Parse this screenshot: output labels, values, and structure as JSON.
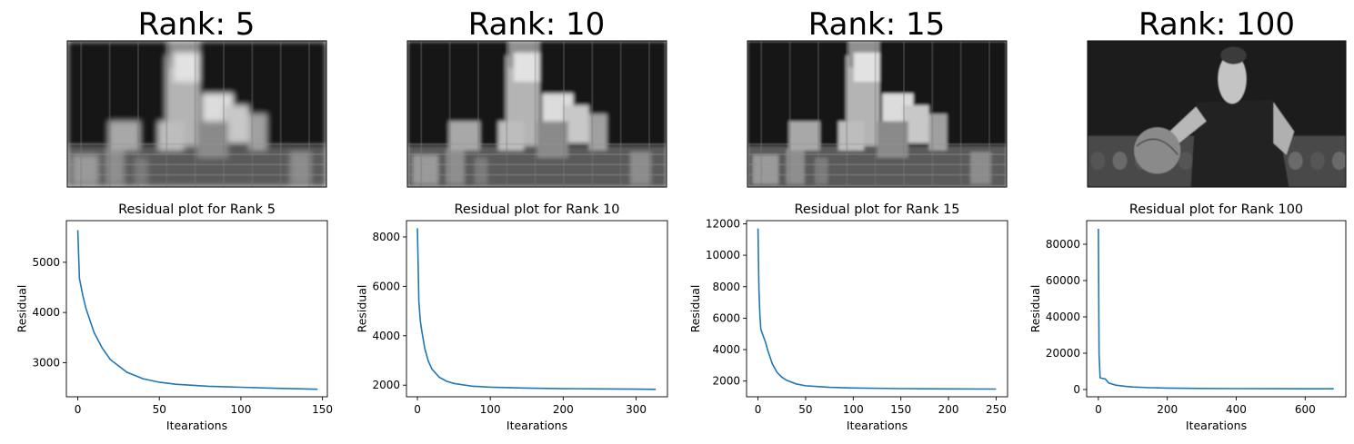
{
  "panels": [
    {
      "image_title": "Rank: 5",
      "plot_title": "Residual plot for Rank 5",
      "rank": 5,
      "image_kind": "low-rank-grayscale-reconstruction"
    },
    {
      "image_title": "Rank: 10",
      "plot_title": "Residual plot for Rank 10",
      "rank": 10,
      "image_kind": "low-rank-grayscale-reconstruction"
    },
    {
      "image_title": "Rank: 15",
      "plot_title": "Residual plot for Rank 15",
      "rank": 15,
      "image_kind": "low-rank-grayscale-reconstruction"
    },
    {
      "image_title": "Rank: 100",
      "plot_title": "Residual plot for Rank 100",
      "rank": 100,
      "image_kind": "grayscale-photo-basketball-player"
    }
  ],
  "colors": {
    "line": "#1f77b4",
    "axes": "#000000",
    "background": "#ffffff"
  },
  "chart_data": [
    {
      "type": "line",
      "title": "Residual plot for Rank 5",
      "xlabel": "Itearations",
      "ylabel": "Residual",
      "xlim": [
        -7,
        153
      ],
      "ylim": [
        2320,
        5830
      ],
      "xticks": [
        0,
        50,
        100,
        150
      ],
      "yticks": [
        3000,
        4000,
        5000
      ],
      "grid": false,
      "series": [
        {
          "x": [
            0,
            1,
            3,
            5,
            10,
            15,
            20,
            30,
            40,
            50,
            60,
            80,
            100,
            120,
            147
          ],
          "y": [
            5640,
            4680,
            4350,
            4080,
            3600,
            3290,
            3060,
            2810,
            2680,
            2610,
            2570,
            2530,
            2510,
            2490,
            2470
          ]
        }
      ]
    },
    {
      "type": "line",
      "title": "Residual plot for Rank 10",
      "xlabel": "Itearations",
      "ylabel": "Residual",
      "xlim": [
        -15,
        343
      ],
      "ylim": [
        1530,
        8660
      ],
      "xticks": [
        0,
        100,
        200,
        300
      ],
      "yticks": [
        2000,
        4000,
        6000,
        8000
      ],
      "grid": false,
      "series": [
        {
          "x": [
            0,
            2,
            4,
            6,
            10,
            15,
            20,
            30,
            40,
            50,
            75,
            100,
            150,
            200,
            250,
            300,
            327
          ],
          "y": [
            8350,
            5400,
            4600,
            4200,
            3500,
            2970,
            2650,
            2320,
            2160,
            2070,
            1960,
            1920,
            1880,
            1860,
            1850,
            1840,
            1830
          ]
        }
      ]
    },
    {
      "type": "line",
      "title": "Residual plot for Rank 15",
      "xlabel": "Itearations",
      "ylabel": "Residual",
      "xlim": [
        -12,
        262
      ],
      "ylim": [
        1000,
        12200
      ],
      "xticks": [
        0,
        50,
        100,
        150,
        200,
        250
      ],
      "yticks": [
        2000,
        4000,
        6000,
        8000,
        10000,
        12000
      ],
      "grid": false,
      "series": [
        {
          "x": [
            0,
            1,
            2,
            3,
            5,
            8,
            10,
            15,
            20,
            25,
            30,
            40,
            50,
            75,
            100,
            150,
            200,
            250
          ],
          "y": [
            11700,
            7800,
            6200,
            5300,
            4950,
            4450,
            4000,
            3100,
            2550,
            2250,
            2050,
            1820,
            1700,
            1600,
            1560,
            1520,
            1500,
            1490
          ]
        }
      ]
    },
    {
      "type": "line",
      "title": "Residual plot for Rank 100",
      "xlabel": "Itearations",
      "ylabel": "Residual",
      "xlim": [
        -34,
        718
      ],
      "ylim": [
        -4000,
        93000
      ],
      "xticks": [
        0,
        200,
        400,
        600
      ],
      "yticks": [
        0,
        20000,
        40000,
        60000,
        80000
      ],
      "grid": false,
      "series": [
        {
          "x": [
            0,
            2,
            5,
            10,
            20,
            30,
            50,
            80,
            100,
            150,
            200,
            300,
            400,
            500,
            600,
            683
          ],
          "y": [
            88500,
            20000,
            6500,
            6200,
            5800,
            3600,
            2400,
            1700,
            1400,
            1000,
            800,
            600,
            500,
            450,
            420,
            400
          ]
        }
      ]
    }
  ]
}
